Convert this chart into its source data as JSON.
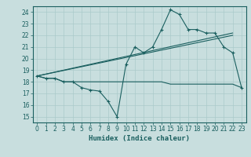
{
  "xlabel": "Humidex (Indice chaleur)",
  "ylabel": "",
  "background_color": "#c8dede",
  "grid_color": "#aacaca",
  "line_color": "#1a5f5f",
  "xlim": [
    -0.5,
    23.5
  ],
  "ylim": [
    14.5,
    24.5
  ],
  "xticks": [
    0,
    1,
    2,
    3,
    4,
    5,
    6,
    7,
    8,
    9,
    10,
    11,
    12,
    13,
    14,
    15,
    16,
    17,
    18,
    19,
    20,
    21,
    22,
    23
  ],
  "yticks": [
    15,
    16,
    17,
    18,
    19,
    20,
    21,
    22,
    23,
    24
  ],
  "line1_x": [
    0,
    1,
    2,
    3,
    4,
    5,
    6,
    7,
    8,
    9,
    10,
    11,
    12,
    13,
    14,
    15,
    16,
    17,
    18,
    19,
    20,
    21,
    22,
    23
  ],
  "line1_y": [
    18.5,
    18.3,
    18.3,
    18.0,
    18.0,
    17.5,
    17.3,
    17.2,
    16.3,
    15.0,
    19.5,
    21.0,
    20.5,
    21.0,
    22.5,
    24.2,
    23.8,
    22.5,
    22.5,
    22.2,
    22.2,
    21.0,
    20.5,
    17.5
  ],
  "line2_x": [
    0,
    1,
    2,
    3,
    4,
    5,
    6,
    7,
    8,
    9,
    10,
    11,
    12,
    13,
    14,
    15,
    16,
    17,
    18,
    19,
    20,
    21,
    22,
    23
  ],
  "line2_y": [
    18.5,
    18.3,
    18.3,
    18.0,
    18.0,
    18.0,
    18.0,
    18.0,
    18.0,
    18.0,
    18.0,
    18.0,
    18.0,
    18.0,
    18.0,
    17.8,
    17.8,
    17.8,
    17.8,
    17.8,
    17.8,
    17.8,
    17.8,
    17.5
  ],
  "line3_x": [
    0,
    22
  ],
  "line3_y": [
    18.5,
    22.2
  ],
  "line4_x": [
    0,
    22
  ],
  "line4_y": [
    18.5,
    22.0
  ]
}
